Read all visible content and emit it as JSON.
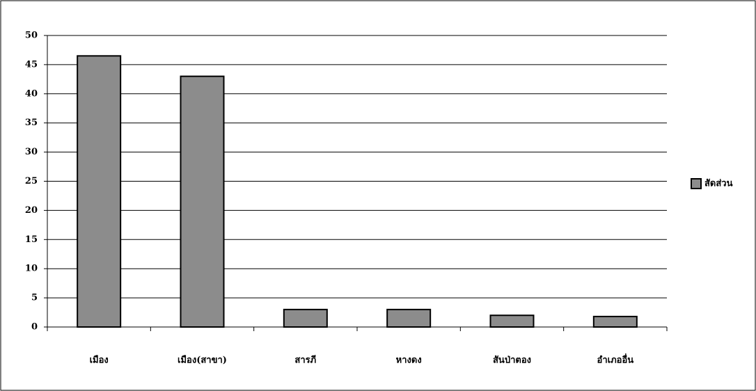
{
  "chart_data": {
    "type": "bar",
    "categories": [
      "เมือง",
      "เมือง(สาขา)",
      "สารภี",
      "หางดง",
      "สันป่าตอง",
      "อำเภออื่น"
    ],
    "series": [
      {
        "name": "สัดส่วน",
        "color": "#8c8c8c",
        "values": [
          46.5,
          43,
          3,
          3,
          2,
          1.8
        ]
      }
    ],
    "ylim": [
      0,
      50
    ],
    "yticks": [
      0,
      5,
      10,
      15,
      20,
      25,
      30,
      35,
      40,
      45,
      50
    ],
    "grid": true,
    "legend": "right"
  }
}
